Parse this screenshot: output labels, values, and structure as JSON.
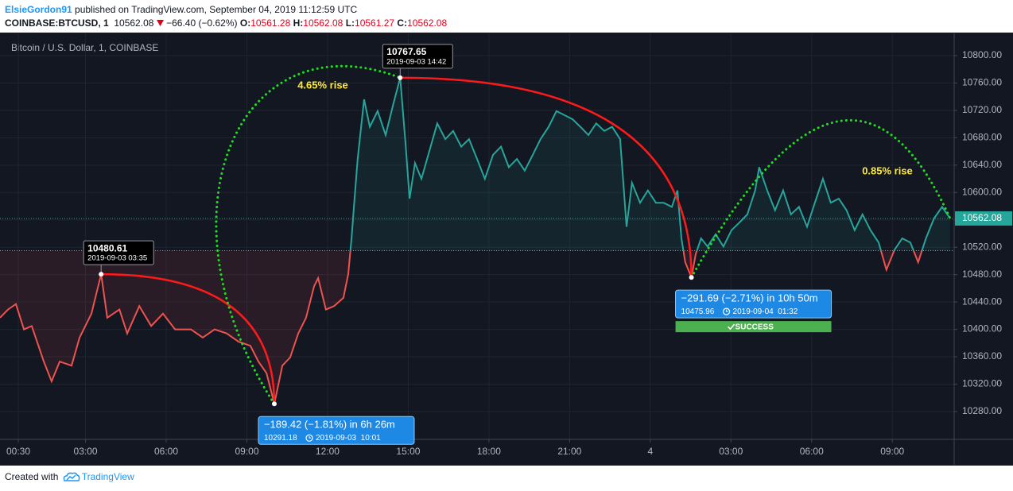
{
  "header": {
    "author": "ElsieGordon91",
    "published": " published on TradingView.com, September 04, 2019 11:12:59 UTC"
  },
  "symbol_bar": {
    "symbol": "COINBASE:BTCUSD, 1",
    "price": "10562.08",
    "change": "−66.40 (−0.62%)",
    "ohlc": [
      {
        "label": "O:",
        "value": "10561.28"
      },
      {
        "label": "H:",
        "value": "10562.08"
      },
      {
        "label": "L:",
        "value": "10561.27"
      },
      {
        "label": "C:",
        "value": "10562.08"
      }
    ]
  },
  "chart_data": {
    "type": "line",
    "title": "Bitcoin / U.S. Dollar, 1, COINBASE",
    "x": [
      -0.18,
      0.12,
      0.41,
      0.71,
      1.0,
      1.45,
      1.74,
      2.04,
      2.48,
      2.78,
      3.22,
      3.58,
      3.81,
      4.26,
      4.55,
      5.0,
      5.44,
      5.88,
      6.33,
      6.92,
      7.36,
      7.8,
      8.25,
      8.69,
      9.13,
      9.43,
      9.73,
      10.02,
      10.32,
      10.61,
      10.91,
      11.2,
      11.5,
      11.65,
      11.94,
      12.24,
      12.59,
      12.77,
      12.89,
      12.98,
      13.12,
      13.36,
      13.57,
      13.86,
      14.16,
      14.45,
      14.7,
      14.9,
      15.05,
      15.25,
      15.49,
      15.79,
      16.08,
      16.38,
      16.67,
      16.97,
      17.26,
      17.56,
      17.85,
      18.15,
      18.45,
      18.74,
      19.04,
      19.33,
      19.63,
      19.92,
      20.22,
      20.51,
      20.81,
      21.11,
      21.4,
      21.7,
      21.99,
      22.29,
      22.58,
      22.88,
      23.12,
      23.32,
      23.62,
      23.91,
      24.21,
      24.5,
      24.8,
      25.01,
      25.16,
      25.3,
      25.53,
      25.69,
      25.89,
      26.13,
      26.43,
      26.72,
      27.02,
      27.31,
      27.61,
      27.9,
      28.05,
      28.35,
      28.64,
      28.94,
      29.23,
      29.53,
      29.83,
      30.12,
      30.42,
      30.71,
      31.01,
      31.3,
      31.6,
      31.89,
      32.19,
      32.49,
      32.78,
      33.08,
      33.37,
      33.67,
      33.96,
      34.25,
      34.55,
      34.85,
      35.15
    ],
    "values": [
      10417,
      10429,
      10437,
      10400,
      10405,
      10353,
      10324,
      10353,
      10347,
      10388,
      10423,
      10480.61,
      10417,
      10429,
      10394,
      10434,
      10405,
      10423,
      10400,
      10400,
      10388,
      10400,
      10394,
      10382,
      10376,
      10353,
      10336,
      10291.18,
      10347,
      10359,
      10394,
      10417,
      10463,
      10475,
      10429,
      10434,
      10446,
      10481,
      10533,
      10579,
      10649,
      10736,
      10696,
      10719,
      10684,
      10730,
      10767.65,
      10672,
      10591,
      10643,
      10620,
      10661,
      10701,
      10678,
      10690,
      10667,
      10678,
      10649,
      10620,
      10655,
      10667,
      10637,
      10649,
      10632,
      10655,
      10678,
      10696,
      10719,
      10713,
      10707,
      10696,
      10684,
      10701,
      10690,
      10696,
      10678,
      10550,
      10614,
      10585,
      10603,
      10585,
      10585,
      10579,
      10603,
      10533,
      10498,
      10475.96,
      10510,
      10533,
      10521,
      10539,
      10521,
      10545,
      10556,
      10568,
      10603,
      10637,
      10603,
      10574,
      10603,
      10568,
      10579,
      10550,
      10585,
      10620,
      10585,
      10591,
      10574,
      10545,
      10568,
      10545,
      10527,
      10487,
      10516,
      10533,
      10527,
      10498,
      10533,
      10562,
      10579,
      10562.08
    ],
    "color_above": "#26a69a",
    "color_below": "#ef5350",
    "baseline": 10515,
    "last_price": 10562.08,
    "xlim": [
      -0.18,
      35.3
    ],
    "ylim": [
      10239.3,
      10832.5
    ],
    "xticks": [
      {
        "value": 0.5,
        "label": "00:30"
      },
      {
        "value": 3,
        "label": "03:00"
      },
      {
        "value": 6,
        "label": "06:00"
      },
      {
        "value": 9,
        "label": "09:00"
      },
      {
        "value": 12,
        "label": "12:00"
      },
      {
        "value": 15,
        "label": "15:00"
      },
      {
        "value": 18,
        "label": "18:00"
      },
      {
        "value": 21,
        "label": "21:00"
      },
      {
        "value": 24,
        "label": "4"
      },
      {
        "value": 27,
        "label": "03:00"
      },
      {
        "value": 30,
        "label": "06:00"
      },
      {
        "value": 33,
        "label": "09:00"
      }
    ],
    "yticks": [
      {
        "value": 10280,
        "label": "10280.00"
      },
      {
        "value": 10320,
        "label": "10320.00"
      },
      {
        "value": 10360,
        "label": "10360.00"
      },
      {
        "value": 10400,
        "label": "10400.00"
      },
      {
        "value": 10440,
        "label": "10440.00"
      },
      {
        "value": 10480,
        "label": "10480.00"
      },
      {
        "value": 10520,
        "label": "10520.00"
      },
      {
        "value": 10560,
        "label": "10560.00"
      },
      {
        "value": 10600,
        "label": "10600.00"
      },
      {
        "value": 10640,
        "label": "10640.00"
      },
      {
        "value": 10680,
        "label": "10680.00"
      },
      {
        "value": 10720,
        "label": "10720.00"
      },
      {
        "value": 10760,
        "label": "10760.00"
      },
      {
        "value": 10800,
        "label": "10800.00"
      }
    ],
    "grid": true,
    "callouts": [
      {
        "x": 3.58,
        "value": 10480.61,
        "time": "2019-09-03 03:35"
      },
      {
        "x": 14.7,
        "value": 10767.65,
        "time": "2019-09-03 14:42"
      }
    ],
    "measures": [
      {
        "x": 10.02,
        "value": 10291.18,
        "change": "−189.42 (−1.81%) in 6h 26m",
        "time": "2019-09-03  10:01"
      },
      {
        "x": 25.53,
        "value": 10475.96,
        "change": "−291.69 (−2.71%) in 10h 50m",
        "time": "2019-09-04  01:32",
        "status": "SUCCESS"
      }
    ],
    "rises": [
      "4.65% rise",
      "0.85% rise"
    ]
  },
  "footer": {
    "created": "Created with ",
    "brand": "TradingView"
  }
}
